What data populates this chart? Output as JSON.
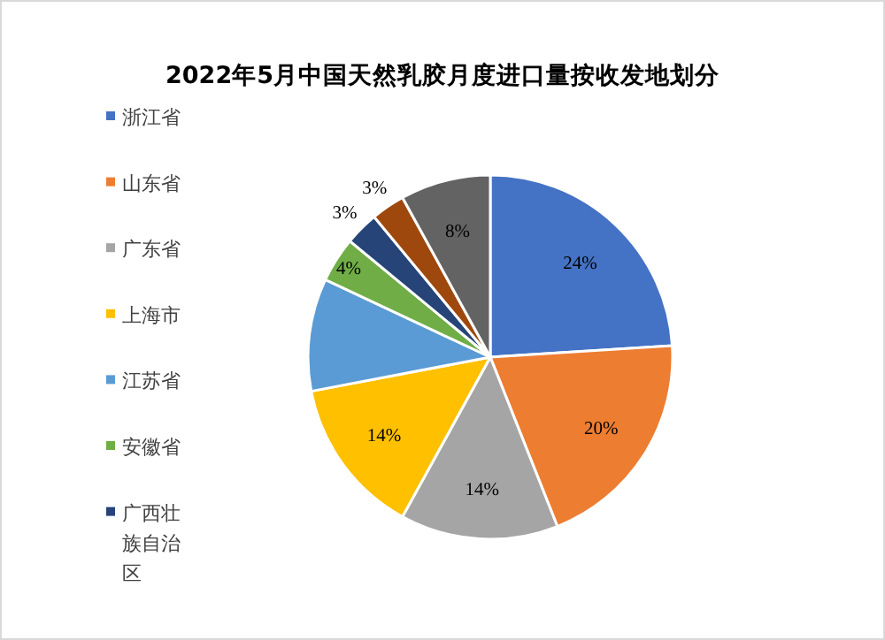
{
  "chart_data": {
    "type": "pie",
    "title": "2022年5月中国天然乳胶月度进口量按收发地划分",
    "categories": [
      "浙江省",
      "山东省",
      "广东省",
      "上海市",
      "江苏省",
      "安徽省",
      "广西壮族自治区",
      null,
      null
    ],
    "values": [
      24,
      20,
      14,
      14,
      10,
      4,
      3,
      3,
      8
    ],
    "value_labels": [
      "24%",
      "20%",
      "14%",
      "14%",
      null,
      "4%",
      "3%",
      "3%",
      "8%"
    ],
    "colors": [
      "#4472c4",
      "#ed7d31",
      "#a5a5a5",
      "#ffc000",
      "#5b9bd5",
      "#70ad47",
      "#264478",
      "#9e480e",
      "#636363"
    ],
    "legend": "left"
  }
}
